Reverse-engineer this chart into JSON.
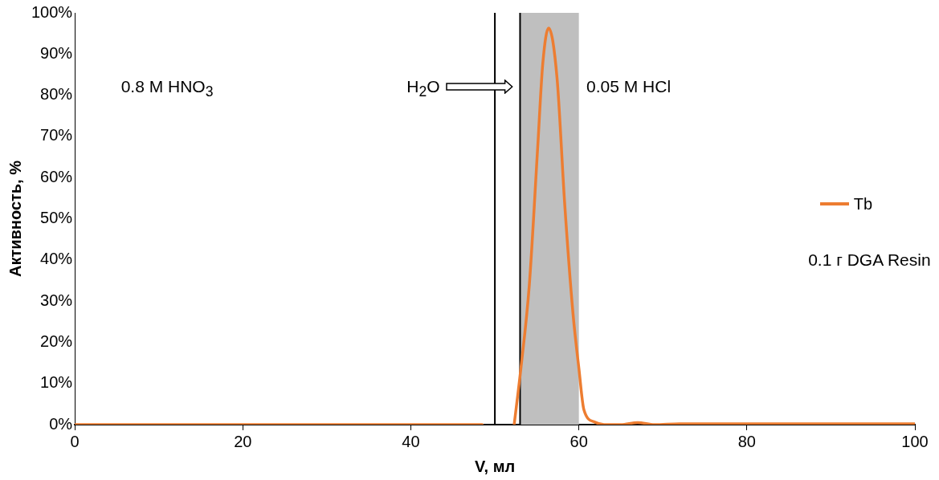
{
  "chart_data": {
    "type": "line",
    "xlabel": "V, мл",
    "ylabel": "Активность, %",
    "xlim": [
      0,
      100
    ],
    "xticks": [
      0,
      20,
      40,
      60,
      80,
      100
    ],
    "ylim": [
      0,
      100
    ],
    "yticks": [
      {
        "value": 0,
        "label": "0%"
      },
      {
        "value": 10,
        "label": "10%"
      },
      {
        "value": 20,
        "label": "20%"
      },
      {
        "value": 30,
        "label": "30%"
      },
      {
        "value": 40,
        "label": "40%"
      },
      {
        "value": 50,
        "label": "50%"
      },
      {
        "value": 60,
        "label": "60%"
      },
      {
        "value": 70,
        "label": "70%"
      },
      {
        "value": 80,
        "label": "80%"
      },
      {
        "value": 90,
        "label": "90%"
      },
      {
        "value": 100,
        "label": "100%"
      }
    ],
    "series": [
      {
        "name": "Tb",
        "color": "#ed7d31",
        "x": [
          0,
          10,
          20,
          30,
          40,
          46,
          48.5,
          50,
          52.3,
          53.1,
          54.1,
          55.1,
          55.7,
          56.4,
          57.4,
          58.3,
          59.3,
          60,
          60.6,
          61.9,
          63,
          65,
          67,
          69,
          72,
          80,
          90,
          100
        ],
        "values": [
          0,
          0,
          0,
          0,
          0,
          0,
          0,
          null,
          0,
          13.7,
          33.9,
          67.4,
          87.6,
          96.3,
          84.2,
          54,
          27,
          13.7,
          3.6,
          0.6,
          0,
          0,
          0.5,
          0,
          0.2,
          0.2,
          0.2,
          0.2
        ]
      }
    ],
    "ref_lines": [
      {
        "axis": "x",
        "value": 50,
        "color": "#000000"
      },
      {
        "axis": "x",
        "value": 53,
        "color": "#000000"
      }
    ],
    "bands": [
      {
        "axis": "x",
        "from": 53,
        "to": 60,
        "color": "#bfbfbf"
      }
    ],
    "annotations": [
      "0.8 M HNO$_{3}$",
      "H$_{2}$O",
      "0.05 M HCl",
      "0.1 г DGA Resin"
    ],
    "legend": "right",
    "grid": false,
    "marker": "none",
    "line_style": "solid"
  }
}
